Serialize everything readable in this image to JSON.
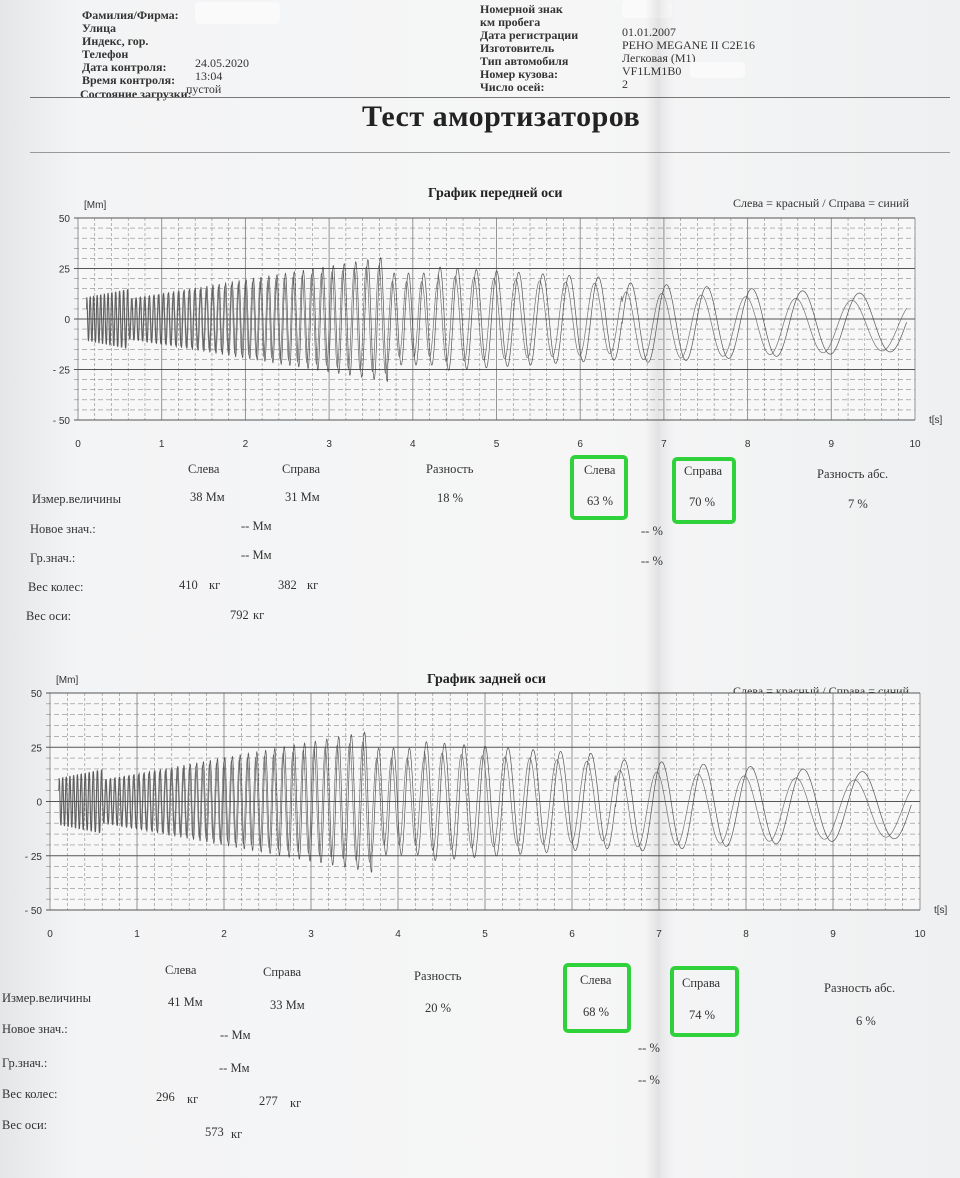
{
  "header": {
    "left": [
      {
        "label": "Фамилия/Фирма:",
        "value": ""
      },
      {
        "label": "Улица",
        "value": ""
      },
      {
        "label": "Индекс, гор.",
        "value": ""
      },
      {
        "label": "Телефон",
        "value": ""
      },
      {
        "label": "Дата контроля:",
        "value": "24.05.2020"
      },
      {
        "label": "Время контроля:",
        "value": "13:04"
      },
      {
        "label": "Состояние загрузки:",
        "value": "пустой"
      }
    ],
    "right": [
      {
        "label": "Номерной знак",
        "value": ""
      },
      {
        "label": "км пробега",
        "value": ""
      },
      {
        "label": "Дата регистрации",
        "value": "01.01.2007"
      },
      {
        "label": "Изготовитель",
        "value": "РЕНО MEGANE II C2E16"
      },
      {
        "label": "Тип автомобиля",
        "value": "Легковая (M1)"
      },
      {
        "label": "Номер кузова:",
        "value": "VF1LM1B0"
      },
      {
        "label": "Число осей:",
        "value": "2"
      }
    ]
  },
  "title": "Тест амортизаторов",
  "axles": [
    {
      "chart_title": "График передней оси",
      "legend": "Слева = красный / Справа = синий",
      "y_unit": "[Mm]",
      "x_unit": "t[s]",
      "col_left": "Слева",
      "col_right": "Справа",
      "col_diff": "Разность",
      "col_eff_left": "Слева",
      "col_eff_right": "Справа",
      "col_diff_abs": "Разность абс.",
      "row_measured": "Измер.величины",
      "row_new": "Новое знач.:",
      "row_limit": "Гр.знач.:",
      "row_wheel_weight": "Вес колес:",
      "row_axle_weight": "Вес оси:",
      "measured_left": "38 Мм",
      "measured_right": "31 Мм",
      "measured_diff": "18 %",
      "eff_left": "63 %",
      "eff_right": "70 %",
      "eff_diff_abs": "7 %",
      "new_value": "-- Мм",
      "new_pct": "-- %",
      "limit_value": "-- Мм",
      "limit_pct": "-- %",
      "wheel_left": "410",
      "wheel_right": "382",
      "wheel_unit": "кг",
      "axle_weight": "792",
      "axle_unit": "кг"
    },
    {
      "chart_title": "График задней оси",
      "legend": "Слева = красный / Справа = синий",
      "y_unit": "[Mm]",
      "x_unit": "t[s]",
      "col_left": "Слева",
      "col_right": "Справа",
      "col_diff": "Разность",
      "col_eff_left": "Слева",
      "col_eff_right": "Справа",
      "col_diff_abs": "Разность абс.",
      "row_measured": "Измер.величины",
      "row_new": "Новое знач.:",
      "row_limit": "Гр.знач.:",
      "row_wheel_weight": "Вес колес:",
      "row_axle_weight": "Вес оси:",
      "measured_left": "41 Мм",
      "measured_right": "33 Мм",
      "measured_diff": "20 %",
      "eff_left": "68 %",
      "eff_right": "74 %",
      "eff_diff_abs": "6 %",
      "new_value": "-- Мм",
      "new_pct": "-- %",
      "limit_value": "-- Мм",
      "limit_pct": "-- %",
      "wheel_left": "296",
      "wheel_right": "277",
      "wheel_unit": "кг",
      "axle_weight": "573",
      "axle_unit": "кг"
    }
  ],
  "chart_data": [
    {
      "type": "line",
      "title": "График передней оси",
      "xlabel": "t[s]",
      "ylabel": "[Mm]",
      "xlim": [
        0,
        10
      ],
      "ylim": [
        -50,
        50
      ],
      "x_ticks": [
        0,
        1,
        2,
        3,
        4,
        5,
        6,
        7,
        8,
        9,
        10
      ],
      "y_ticks": [
        50,
        25,
        0,
        -25,
        -50
      ],
      "y_tick_labels": [
        "50",
        "25",
        "0",
        "- 25",
        "- 50"
      ],
      "grid": true,
      "legend": "Слева = красный / Справа = синий",
      "series": [
        {
          "color": "#3a3a3a",
          "peak_amplitude": 38
        },
        {
          "color": "#5a5a5a",
          "peak_amplitude": 31
        }
      ]
    },
    {
      "type": "line",
      "title": "График задней оси",
      "xlabel": "t[s]",
      "ylabel": "[Mm]",
      "xlim": [
        0,
        10
      ],
      "ylim": [
        -50,
        50
      ],
      "x_ticks": [
        0,
        1,
        2,
        3,
        4,
        5,
        6,
        7,
        8,
        9,
        10
      ],
      "y_ticks": [
        50,
        25,
        0,
        -25,
        -50
      ],
      "y_tick_labels": [
        "50",
        "25",
        "0",
        "- 25",
        "- 50"
      ],
      "grid": true,
      "legend": "Слева = красный / Справа = синий",
      "series": [
        {
          "color": "#3a3a3a",
          "peak_amplitude": 41
        },
        {
          "color": "#5a5a5a",
          "peak_amplitude": 33
        }
      ]
    }
  ],
  "colors": {
    "highlight": "#2fd23a",
    "ink": "#333333",
    "grid": "#8a8a8a"
  }
}
